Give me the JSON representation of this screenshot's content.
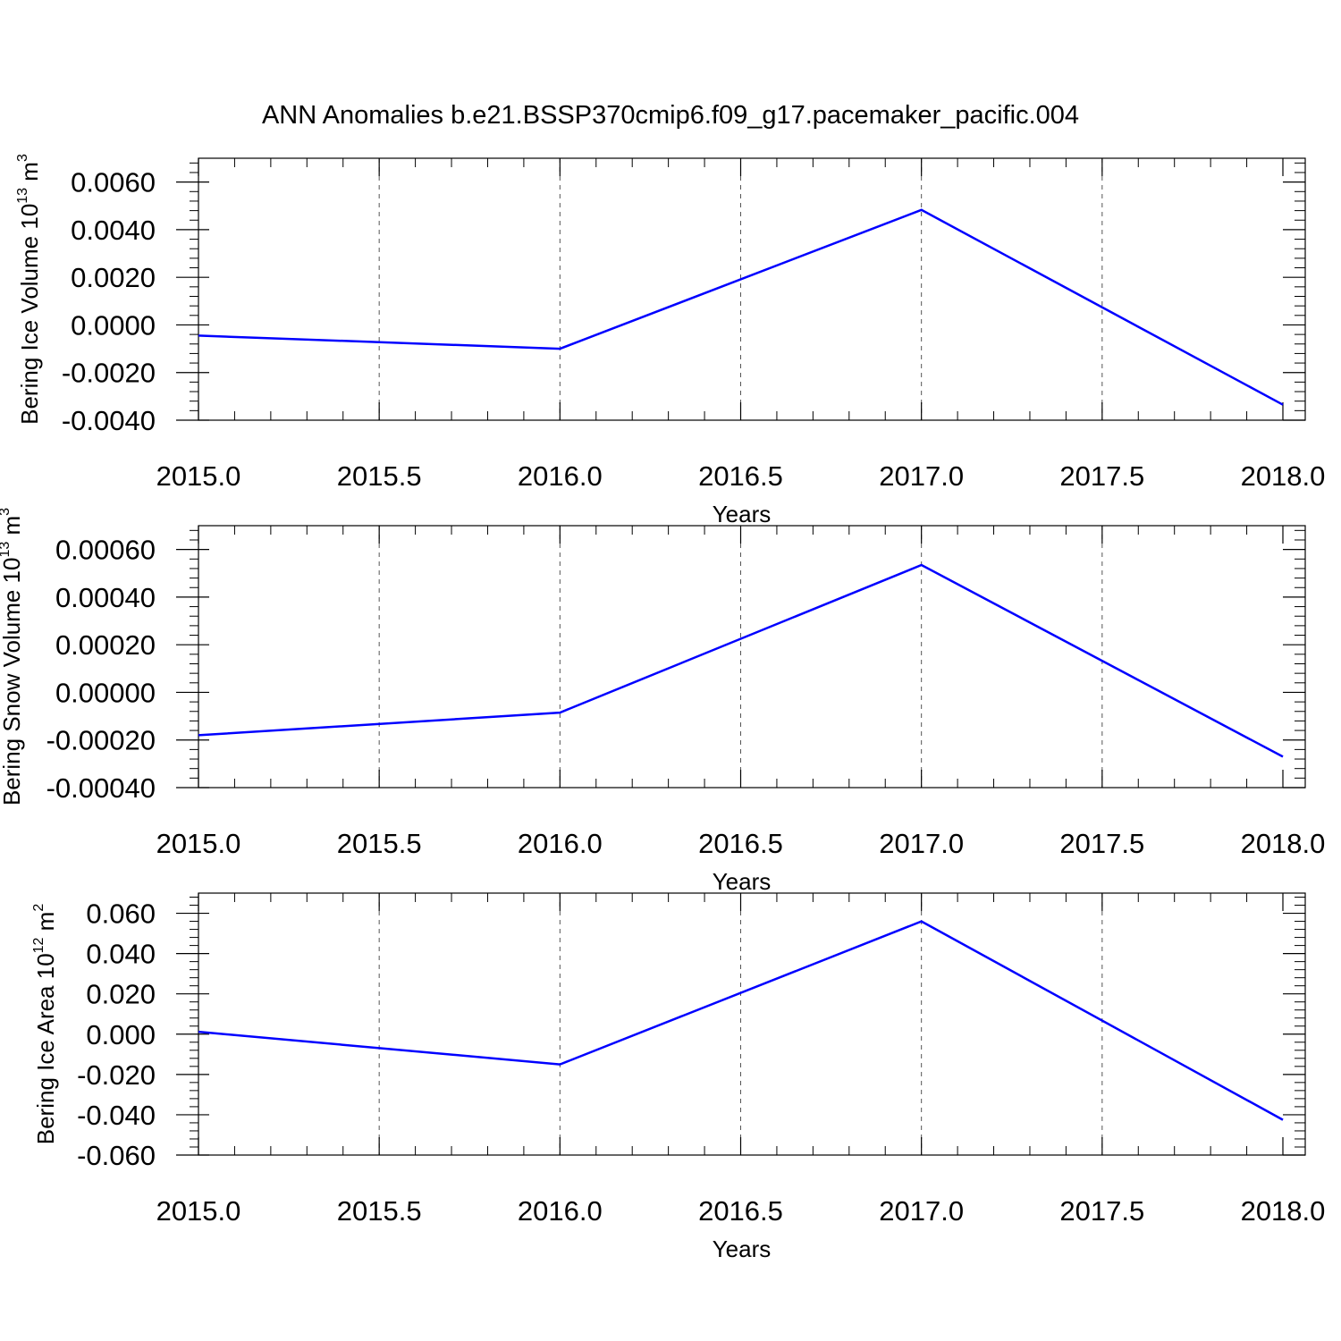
{
  "title": "ANN Anomalies b.e21.BSSP370cmip6.f09_g17.pacemaker_pacific.004",
  "colors": {
    "line": "#0000ff",
    "axis": "#000000",
    "grid": "#555555"
  },
  "chart_data": [
    {
      "type": "line",
      "x": [
        2015,
        2016,
        2017,
        2018
      ],
      "series": [
        {
          "values": [
            -0.00045,
            -0.001,
            0.00483,
            -0.00335
          ]
        }
      ],
      "xlim": [
        2015,
        2018
      ],
      "ylim": [
        -0.004,
        0.007
      ],
      "x_ticks": [
        "2015.0",
        "2015.5",
        "2016.0",
        "2016.5",
        "2017.0",
        "2017.5",
        "2018.0"
      ],
      "y_ticks": [
        "-0.0040",
        "-0.0020",
        "0.0000",
        "0.0020",
        "0.0040",
        "0.0060"
      ],
      "xlabel": "Years",
      "ylabel": {
        "text": "Bering Ice Volume 10",
        "sup": "13",
        "unit": "m",
        "unit_sup": "3"
      },
      "grid": "vertical dashed"
    },
    {
      "type": "line",
      "x": [
        2015,
        2016,
        2017,
        2018
      ],
      "series": [
        {
          "values": [
            -0.00018,
            -8.5e-05,
            0.000535,
            -0.00027
          ]
        }
      ],
      "xlim": [
        2015,
        2018
      ],
      "ylim": [
        -0.0004,
        0.0007
      ],
      "x_ticks": [
        "2015.0",
        "2015.5",
        "2016.0",
        "2016.5",
        "2017.0",
        "2017.5",
        "2018.0"
      ],
      "y_ticks": [
        "-0.00040",
        "-0.00020",
        "0.00000",
        "0.00020",
        "0.00040",
        "0.00060"
      ],
      "xlabel": "Years",
      "ylabel": {
        "text": "Bering Snow Volume 10",
        "sup": "13",
        "unit": "m",
        "unit_sup": "3"
      },
      "grid": "vertical dashed"
    },
    {
      "type": "line",
      "x": [
        2015,
        2016,
        2017,
        2018
      ],
      "series": [
        {
          "values": [
            0.0012,
            -0.015,
            0.056,
            -0.0425
          ]
        }
      ],
      "xlim": [
        2015,
        2018
      ],
      "ylim": [
        -0.06,
        0.07
      ],
      "x_ticks": [
        "2015.0",
        "2015.5",
        "2016.0",
        "2016.5",
        "2017.0",
        "2017.5",
        "2018.0"
      ],
      "y_ticks": [
        "-0.060",
        "-0.040",
        "-0.020",
        "0.000",
        "0.020",
        "0.040",
        "0.060"
      ],
      "xlabel": "Years",
      "ylabel": {
        "text": "Bering Ice Area 10",
        "sup": "12",
        "unit": "m",
        "unit_sup": "2"
      },
      "grid": "vertical dashed"
    }
  ]
}
